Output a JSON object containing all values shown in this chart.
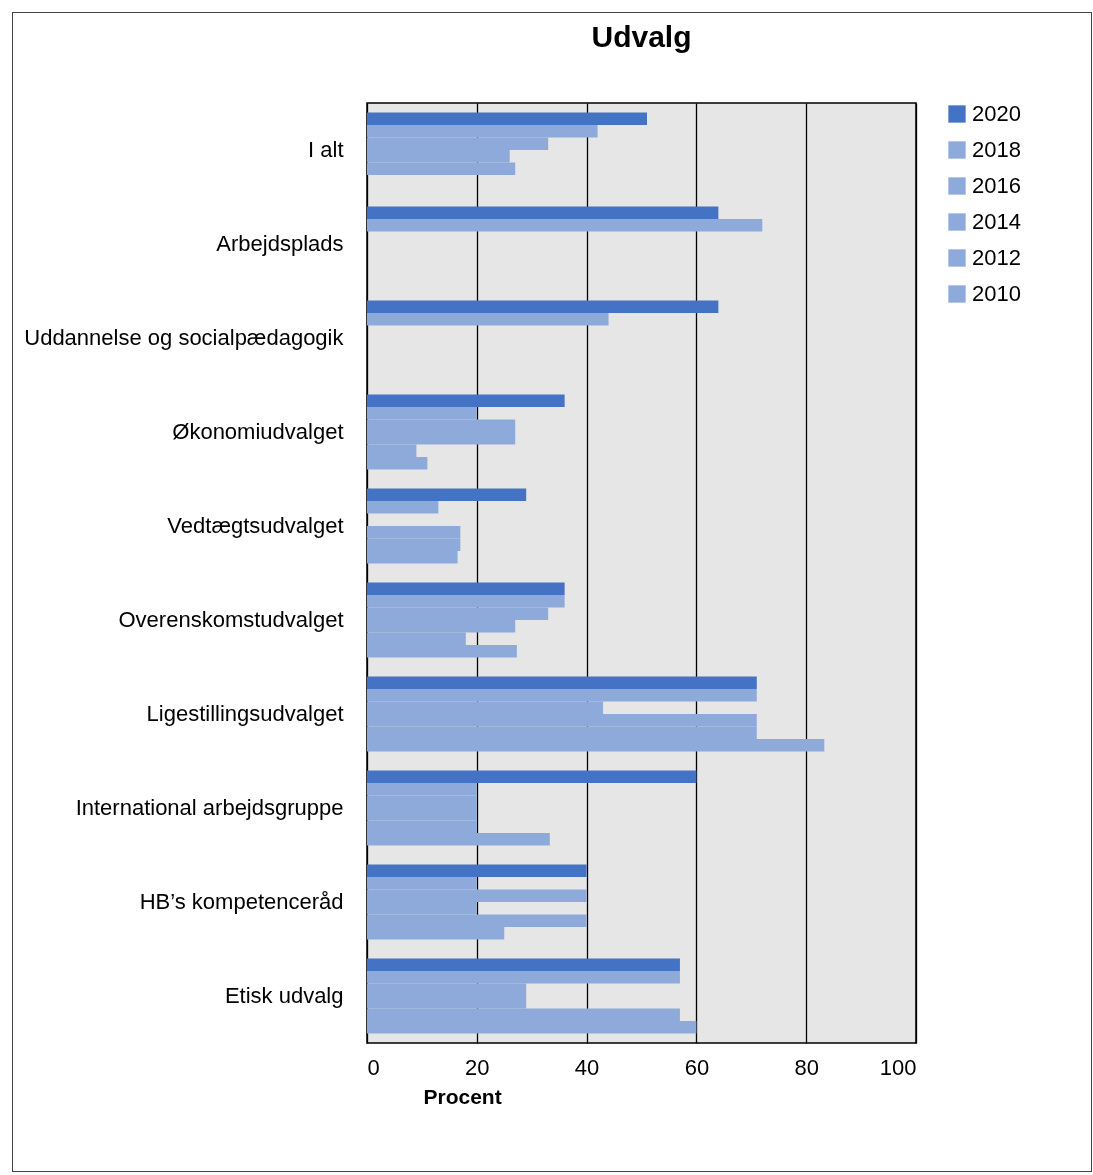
{
  "chart_data": {
    "type": "bar",
    "orientation": "horizontal",
    "title": "Udvalg",
    "xlabel": "Procent",
    "categories": [
      "I alt",
      "Arbejdsplads",
      "Uddannelse og socialpædagogik",
      "Økonomiudvalget",
      "Vedtægtsudvalget",
      "Overenskomstudvalget",
      "Ligestillingsudvalget",
      "International arbejdsgruppe",
      "HB’s kompetenceråd",
      "Etisk udvalg"
    ],
    "series": [
      {
        "name": "2020",
        "color": "#4472c4",
        "values": [
          51,
          64,
          64,
          36,
          29,
          36,
          71,
          60,
          40,
          57
        ]
      },
      {
        "name": "2018",
        "color": "#8eaadb",
        "values": [
          42,
          72,
          44,
          20,
          13,
          36,
          71,
          20,
          20,
          57
        ]
      },
      {
        "name": "2016",
        "color": "#8eaadb",
        "values": [
          33,
          null,
          null,
          27,
          null,
          33,
          43,
          20,
          40,
          29
        ]
      },
      {
        "name": "2014",
        "color": "#8eaadb",
        "values": [
          26,
          null,
          null,
          27,
          17,
          27,
          71,
          20,
          20,
          29
        ]
      },
      {
        "name": "2012",
        "color": "#8eaadb",
        "values": [
          27,
          null,
          null,
          9,
          17,
          18,
          71,
          20,
          40,
          57
        ]
      },
      {
        "name": "2010",
        "color": "#8eaadb",
        "values": [
          null,
          null,
          null,
          11,
          16.5,
          27.3,
          83.3,
          33.3,
          25,
          60
        ]
      }
    ],
    "xlim": [
      0,
      100
    ],
    "xticks": [
      0,
      20,
      40,
      60,
      80,
      100
    ],
    "grid": "x",
    "legend": "right"
  }
}
